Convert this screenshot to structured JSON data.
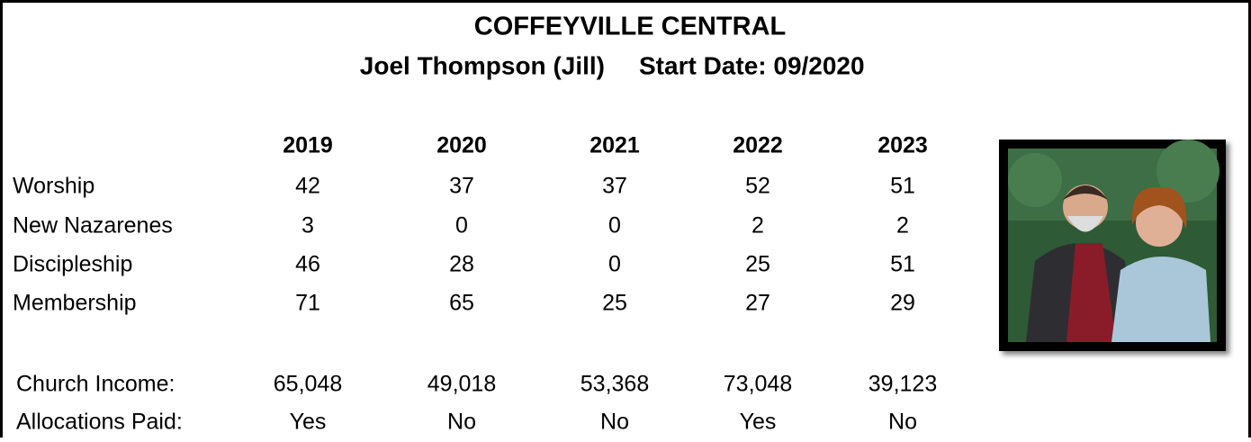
{
  "header": {
    "title": "COFFEYVILLE CENTRAL",
    "pastor": "Joel Thompson (Jill)",
    "start_date": "Start Date: 09/2020"
  },
  "table": {
    "columns": [
      "2019",
      "2020",
      "2021",
      "2022",
      "2023"
    ],
    "rows": [
      {
        "label": "Worship",
        "values": [
          "42",
          "37",
          "37",
          "52",
          "51"
        ]
      },
      {
        "label": "New Nazarenes",
        "values": [
          "3",
          "0",
          "0",
          "2",
          "2"
        ]
      },
      {
        "label": "Discipleship",
        "values": [
          "46",
          "28",
          "0",
          "25",
          "51"
        ]
      },
      {
        "label": "Membership",
        "values": [
          "71",
          "65",
          "25",
          "27",
          "29"
        ]
      }
    ],
    "finance_rows": [
      {
        "label": "Church Income:",
        "values": [
          "65,048",
          "49,018",
          "53,368",
          "73,048",
          "39,123"
        ]
      },
      {
        "label": "Allocations Paid:",
        "values": [
          "Yes",
          "No",
          "No",
          "Yes",
          "No"
        ]
      }
    ]
  }
}
